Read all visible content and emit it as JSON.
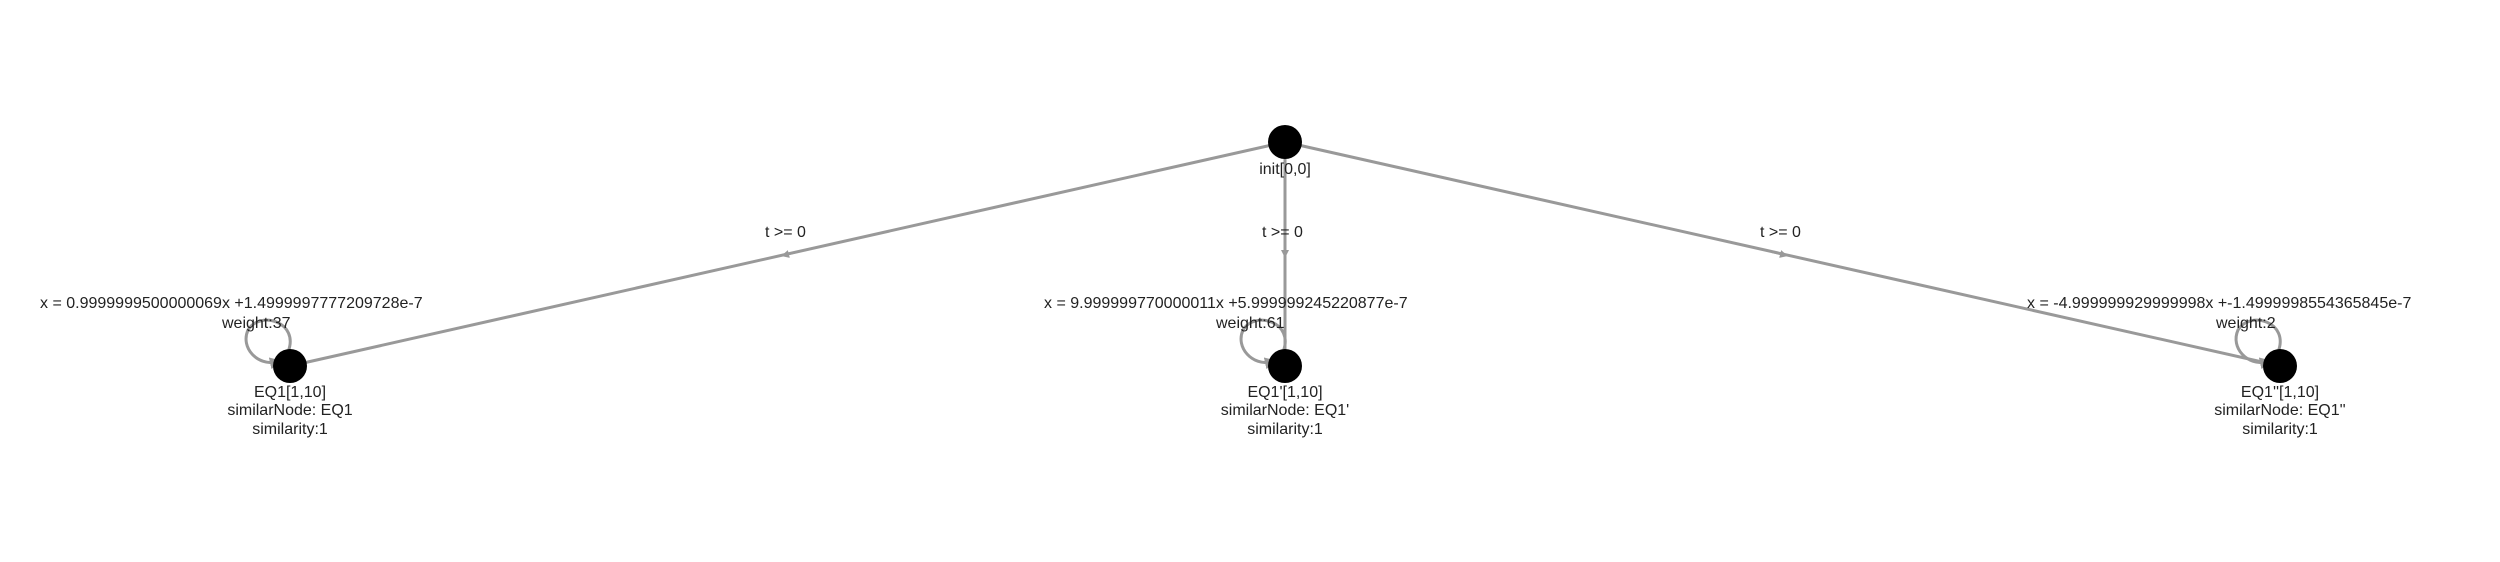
{
  "colors": {
    "edge": "#999999",
    "node": "#000000",
    "text": "#222222",
    "background": "#ffffff"
  },
  "nodes": {
    "init": {
      "label": "init[0,0]"
    },
    "eq1": {
      "label": "EQ1[1,10]",
      "similar": "similarNode: EQ1",
      "similarity": "similarity:1"
    },
    "eq1p": {
      "label": "EQ1'[1,10]",
      "similar": "similarNode: EQ1'",
      "similarity": "similarity:1"
    },
    "eq1pp": {
      "label": "EQ1''[1,10]",
      "similar": "similarNode: EQ1''",
      "similarity": "similarity:1"
    }
  },
  "edges": {
    "init_eq1": {
      "guard": "t >= 0"
    },
    "init_eq1p": {
      "guard": "t >= 0"
    },
    "init_eq1pp": {
      "guard": "t >= 0"
    }
  },
  "loops": {
    "eq1": {
      "equation": "x = 0.9999999500000069x +1.4999997777209728e-7",
      "weight": "weight:37"
    },
    "eq1p": {
      "equation": "x = 9.999999770000011x +5.999999245220877e-7",
      "weight": "weight:61"
    },
    "eq1pp": {
      "equation": "x = -4.999999929999998x +-1.4999998554365845e-7",
      "weight": "weight:2"
    }
  }
}
